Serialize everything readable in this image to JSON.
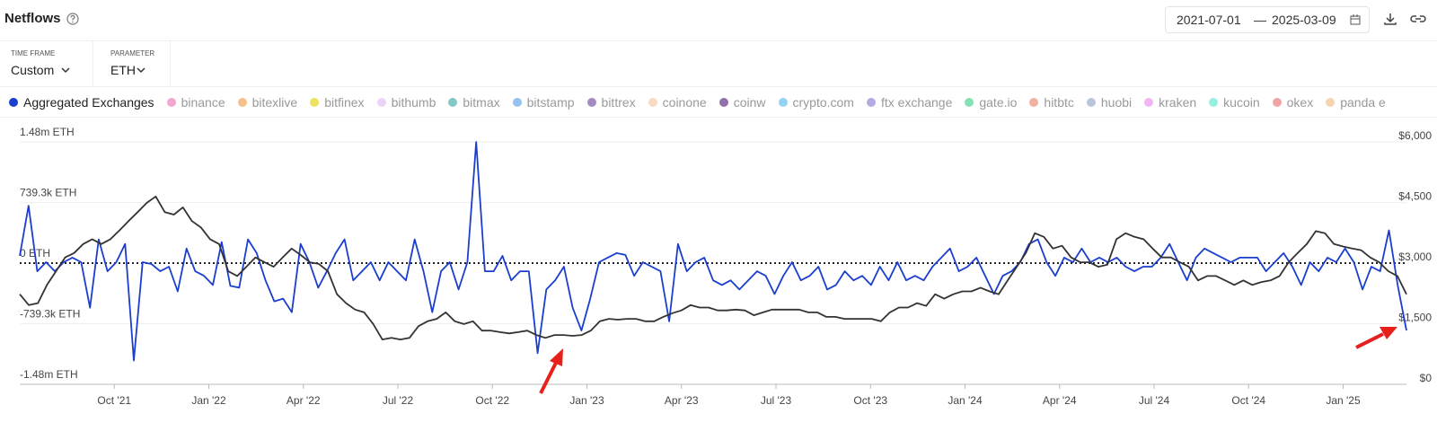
{
  "header": {
    "title": "Netflows",
    "date_start": "2021-07-01",
    "date_sep": "—",
    "date_end": "2025-03-09"
  },
  "filters": [
    {
      "label": "TIME FRAME",
      "value": "Custom"
    },
    {
      "label": "PARAMETER",
      "value": "ETH"
    }
  ],
  "legend": [
    {
      "name": "Aggregated Exchanges",
      "color": "#1a3fcf"
    },
    {
      "name": "binance",
      "color": "#f3a6cf"
    },
    {
      "name": "bitexlive",
      "color": "#f5c08a"
    },
    {
      "name": "bitfinex",
      "color": "#efe25e"
    },
    {
      "name": "bithumb",
      "color": "#ecd4f7"
    },
    {
      "name": "bitmax",
      "color": "#82c9c6"
    },
    {
      "name": "bitstamp",
      "color": "#94c2f0"
    },
    {
      "name": "bittrex",
      "color": "#a38bc2"
    },
    {
      "name": "coinone",
      "color": "#f6dac3"
    },
    {
      "name": "coinw",
      "color": "#9271aa"
    },
    {
      "name": "crypto.com",
      "color": "#93d3f3"
    },
    {
      "name": "ftx exchange",
      "color": "#b3abe2"
    },
    {
      "name": "gate.io",
      "color": "#84e2b3"
    },
    {
      "name": "hitbtc",
      "color": "#f1b2a2"
    },
    {
      "name": "huobi",
      "color": "#b9c5da"
    },
    {
      "name": "kraken",
      "color": "#f2b4f2"
    },
    {
      "name": "kucoin",
      "color": "#95f0e2"
    },
    {
      "name": "okex",
      "color": "#f2a3a3"
    },
    {
      "name": "panda e",
      "color": "#f6d4b2"
    }
  ],
  "chart_data": {
    "type": "line",
    "xticks": [
      "Oct '21",
      "Jan '22",
      "Apr '22",
      "Jul '22",
      "Oct '22",
      "Jan '23",
      "Apr '23",
      "Jul '23",
      "Oct '23",
      "Jan '24",
      "Apr '24",
      "Jul '24",
      "Oct '24",
      "Jan '25"
    ],
    "ylim": [
      -1480000,
      1480000
    ],
    "yticks": [
      {
        "value": 1480000,
        "label": "1.48m ETH"
      },
      {
        "value": 739300,
        "label": "739.3k ETH"
      },
      {
        "value": 0,
        "label": "0 ETH"
      },
      {
        "value": -739300,
        "label": "-739.3k ETH"
      },
      {
        "value": -1480000,
        "label": "-1.48m ETH"
      }
    ],
    "y2lim": [
      0,
      6000
    ],
    "y2ticks": [
      {
        "value": 6000,
        "label": "$6,000"
      },
      {
        "value": 4500,
        "label": "$4,500"
      },
      {
        "value": 3000,
        "label": "$3,000"
      },
      {
        "value": 1500,
        "label": "$1,500"
      },
      {
        "value": 0,
        "label": "$0"
      }
    ],
    "grid": true,
    "series": [
      {
        "color": "#1a3fcf",
        "values": [
          89000,
          700000,
          -100000,
          11000,
          -100000,
          11000,
          67000,
          11000,
          -545000,
          289000,
          -100000,
          11000,
          234000,
          -1190000,
          11000,
          -11000,
          -100000,
          -44000,
          -345000,
          178000,
          -100000,
          -156000,
          -267000,
          256000,
          -278000,
          -300000,
          289000,
          122000,
          -211000,
          -467000,
          -434000,
          -600000,
          234000,
          11000,
          -300000,
          -100000,
          122000,
          289000,
          -211000,
          -100000,
          11000,
          -211000,
          11000,
          -100000,
          -211000,
          289000,
          -100000,
          -600000,
          -100000,
          11000,
          -322000,
          11000,
          1479000,
          -100000,
          -100000,
          89000,
          -211000,
          -100000,
          -100000,
          -1100000,
          -322000,
          -211000,
          -44000,
          -545000,
          -823000,
          -434000,
          11000,
          67000,
          122000,
          100000,
          -156000,
          11000,
          -44000,
          -100000,
          -712000,
          234000,
          -100000,
          11000,
          67000,
          -211000,
          -267000,
          -211000,
          -322000,
          -211000,
          -100000,
          -156000,
          -378000,
          -156000,
          11000,
          -211000,
          -156000,
          -44000,
          -322000,
          -267000,
          -100000,
          -211000,
          -156000,
          -267000,
          -44000,
          -211000,
          11000,
          -211000,
          -156000,
          -211000,
          -44000,
          67000,
          178000,
          -100000,
          -44000,
          67000,
          -156000,
          -378000,
          -156000,
          -100000,
          11000,
          234000,
          289000,
          11000,
          -156000,
          67000,
          11000,
          178000,
          11000,
          67000,
          11000,
          67000,
          -44000,
          -100000,
          -44000,
          -44000,
          67000,
          234000,
          11000,
          -211000,
          67000,
          178000,
          122000,
          67000,
          11000,
          67000,
          67000,
          67000,
          -100000,
          11000,
          122000,
          -44000,
          -267000,
          11000,
          -100000,
          67000,
          11000,
          178000,
          11000,
          -322000,
          -44000,
          -100000,
          400000,
          -267000,
          -823000
        ]
      },
      {
        "color": "#333333",
        "axis": "y2",
        "values": [
          2230,
          1960,
          2010,
          2460,
          2800,
          3140,
          3250,
          3470,
          3590,
          3470,
          3590,
          3810,
          4040,
          4260,
          4490,
          4650,
          4260,
          4200,
          4380,
          4040,
          3880,
          3590,
          3470,
          2800,
          2680,
          2910,
          3140,
          3020,
          2910,
          3140,
          3360,
          3200,
          3020,
          2980,
          2800,
          2230,
          2010,
          1850,
          1780,
          1490,
          1110,
          1150,
          1110,
          1150,
          1440,
          1560,
          1620,
          1780,
          1560,
          1490,
          1560,
          1330,
          1330,
          1290,
          1260,
          1290,
          1330,
          1220,
          1150,
          1220,
          1220,
          1200,
          1220,
          1330,
          1560,
          1620,
          1600,
          1620,
          1620,
          1560,
          1560,
          1670,
          1760,
          1830,
          1960,
          1900,
          1900,
          1830,
          1830,
          1850,
          1830,
          1710,
          1780,
          1850,
          1850,
          1850,
          1850,
          1780,
          1780,
          1670,
          1670,
          1620,
          1620,
          1620,
          1620,
          1560,
          1780,
          1900,
          1900,
          2010,
          1940,
          2230,
          2120,
          2230,
          2300,
          2300,
          2390,
          2300,
          2230,
          2570,
          2910,
          3250,
          3740,
          3650,
          3360,
          3430,
          3140,
          3020,
          3020,
          2910,
          2960,
          3590,
          3740,
          3650,
          3590,
          3360,
          3140,
          3140,
          3020,
          2910,
          2570,
          2680,
          2680,
          2570,
          2460,
          2570,
          2460,
          2530,
          2570,
          2680,
          3020,
          3250,
          3470,
          3790,
          3740,
          3470,
          3410,
          3360,
          3320,
          3140,
          3020,
          2800,
          2680,
          2230
        ]
      }
    ]
  }
}
